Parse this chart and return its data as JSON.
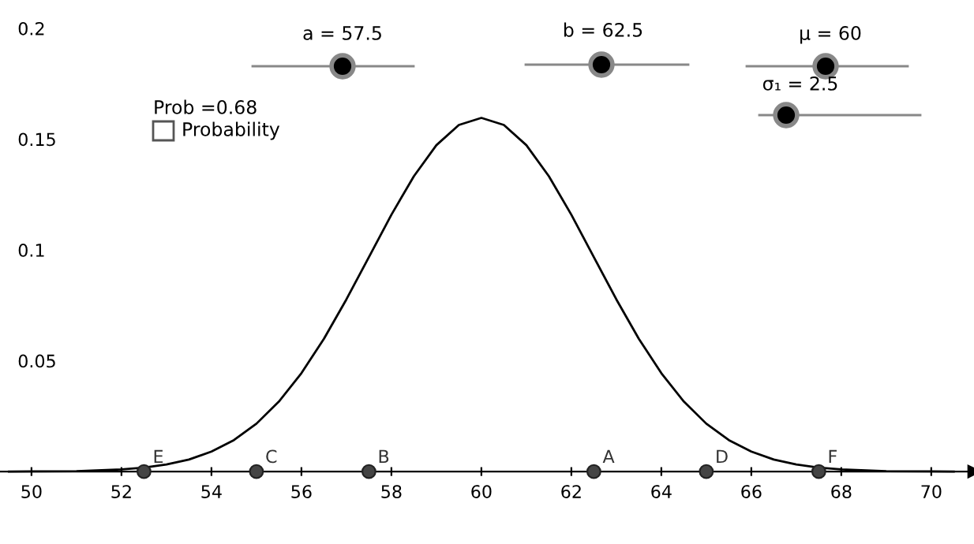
{
  "chart_data": {
    "type": "line",
    "x": [
      49.5,
      50,
      51,
      52,
      52.5,
      53,
      53.5,
      54,
      54.5,
      55,
      55.5,
      56,
      56.5,
      57,
      57.5,
      58,
      58.5,
      59,
      59.5,
      60,
      60.5,
      61,
      61.5,
      62,
      62.5,
      63,
      63.5,
      64,
      64.5,
      65,
      65.5,
      66,
      66.5,
      67,
      67.5,
      68,
      69,
      70,
      70.5
    ],
    "series": [
      {
        "color": "#000000",
        "values": [
          0.0,
          0.0001,
          0.0002,
          0.001,
          0.0018,
          0.0032,
          0.0054,
          0.009,
          0.0142,
          0.0216,
          0.0316,
          0.0444,
          0.0599,
          0.0777,
          0.0968,
          0.1159,
          0.1333,
          0.1473,
          0.1564,
          0.1596,
          0.1564,
          0.1473,
          0.1333,
          0.1159,
          0.0968,
          0.0777,
          0.0599,
          0.0444,
          0.0316,
          0.0216,
          0.0142,
          0.009,
          0.0054,
          0.0032,
          0.0018,
          0.001,
          0.0002,
          0.0001,
          0.0
        ]
      },
      {
        "type": "scatter",
        "marker": "circle",
        "color": "#444444",
        "x": [
          62.5,
          57.5,
          55,
          65,
          52.5,
          67.5
        ],
        "values": [
          0,
          0,
          0,
          0,
          0,
          0
        ]
      }
    ],
    "xlim": [
      49.3,
      70.95
    ],
    "ylim": [
      -0.0327,
      0.2128
    ],
    "xticks": [
      50,
      52,
      54,
      56,
      58,
      60,
      62,
      64,
      66,
      68,
      70
    ],
    "yticks": [
      0.05,
      0.1,
      0.15,
      0.2
    ],
    "grid": false,
    "legend": false,
    "annotations": [
      "a = 57.5",
      "b = 62.5",
      "μ = 60",
      "σ₁ = 2.5",
      "Prob =0.68",
      "Probability",
      {
        "text": "A",
        "x": 62.5,
        "y": 0
      },
      {
        "text": "B",
        "x": 57.5,
        "y": 0
      },
      {
        "text": "C",
        "x": 55,
        "y": 0
      },
      {
        "text": "D",
        "x": 65,
        "y": 0
      },
      {
        "text": "E",
        "x": 52.5,
        "y": 0
      },
      {
        "text": "F",
        "x": 67.5,
        "y": 0
      }
    ]
  }
}
